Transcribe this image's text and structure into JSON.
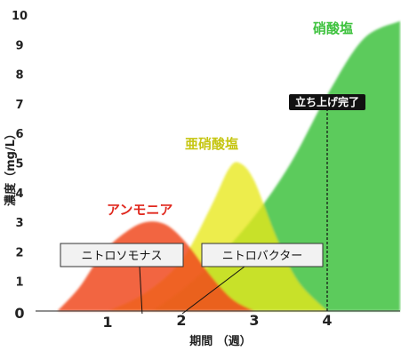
{
  "chart_data": {
    "type": "area",
    "xlabel": "期間 （週）",
    "ylabel": "濃度（mg/L）",
    "xlim": [
      0,
      5
    ],
    "ylim": [
      0,
      10
    ],
    "x_ticks": [
      "0",
      "1",
      "2",
      "3",
      "4"
    ],
    "y_ticks": [
      "1",
      "2",
      "3",
      "4",
      "5",
      "6",
      "7",
      "8",
      "9",
      "10"
    ],
    "grid": false,
    "series": [
      {
        "name": "アンモニア",
        "color": "#f04a1e",
        "x": [
          0.3,
          0.6,
          0.9,
          1.2,
          1.5,
          1.8,
          2.1,
          2.4,
          2.7,
          3.0
        ],
        "y": [
          0,
          0.8,
          1.9,
          2.6,
          3.0,
          2.9,
          2.2,
          1.2,
          0.4,
          0
        ]
      },
      {
        "name": "亜硝酸塩",
        "color": "#e8e81a",
        "x": [
          1.0,
          1.5,
          2.0,
          2.4,
          2.65,
          2.8,
          3.0,
          3.3,
          3.6,
          4.0
        ],
        "y": [
          0,
          0.6,
          1.7,
          3.5,
          4.8,
          5.0,
          4.4,
          2.5,
          1.0,
          0
        ]
      },
      {
        "name": "硝酸塩",
        "color": "#3ec23e",
        "x": [
          1.6,
          2.0,
          2.5,
          3.0,
          3.5,
          4.0,
          4.5,
          5.0
        ],
        "y": [
          0,
          0.7,
          1.8,
          3.2,
          5.0,
          7.3,
          9.2,
          9.8
        ]
      }
    ],
    "annotations": [
      {
        "type": "vertical-line",
        "x": 4.0,
        "label": "立ち上げ完了"
      },
      {
        "type": "callout",
        "label": "ニトロソモナス",
        "points_to_x": 1.45
      },
      {
        "type": "callout",
        "label": "ニトロバクター",
        "points_to_x": 2.0
      }
    ]
  }
}
